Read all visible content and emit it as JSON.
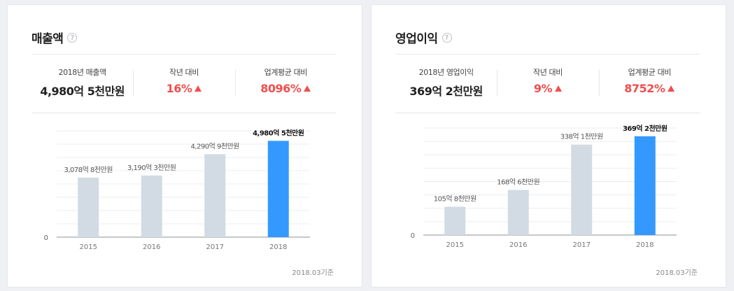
{
  "cards": [
    {
      "title": "매출액",
      "help_icon": "question-icon",
      "stats": [
        {
          "label": "2018년 매출액",
          "value": "4,980억 5천만원",
          "trend": ""
        },
        {
          "label": "작년 대비",
          "value": "16%",
          "trend": "up"
        },
        {
          "label": "업계평균 대비",
          "value": "8096%",
          "trend": "up"
        }
      ],
      "footnote": "2018.03기준"
    },
    {
      "title": "영업이익",
      "help_icon": "question-icon",
      "stats": [
        {
          "label": "2018년 영업이익",
          "value": "369억 2천만원",
          "trend": ""
        },
        {
          "label": "작년 대비",
          "value": "9%",
          "trend": "up"
        },
        {
          "label": "업계평균 대비",
          "value": "8752%",
          "trend": "up"
        }
      ],
      "footnote": "2018.03기준"
    }
  ],
  "chart_data": [
    {
      "type": "bar",
      "categories": [
        "2015",
        "2016",
        "2017",
        "2018"
      ],
      "values": [
        3078.8,
        3190.3,
        4290.9,
        4980.5
      ],
      "data_labels": [
        "3,078억 8천만원",
        "3,190억 3천만원",
        "4,290억 9천만원",
        "4,980억 5천만원"
      ],
      "y_zero_label": "0",
      "ylim": [
        0,
        5500
      ],
      "grid": true,
      "bar_color": "#d2dbe3",
      "highlight_color": "#3399ff",
      "highlight_index": 3
    },
    {
      "type": "bar",
      "categories": [
        "2015",
        "2016",
        "2017",
        "2018"
      ],
      "values": [
        105.8,
        168.6,
        338.1,
        369.2
      ],
      "data_labels": [
        "105억 8천만원",
        "168억 6천만원",
        "338억 1천만원",
        "369억 2천만원"
      ],
      "y_zero_label": "0",
      "ylim": [
        0,
        400
      ],
      "grid": true,
      "bar_color": "#d2dbe3",
      "highlight_color": "#3399ff",
      "highlight_index": 3
    }
  ]
}
